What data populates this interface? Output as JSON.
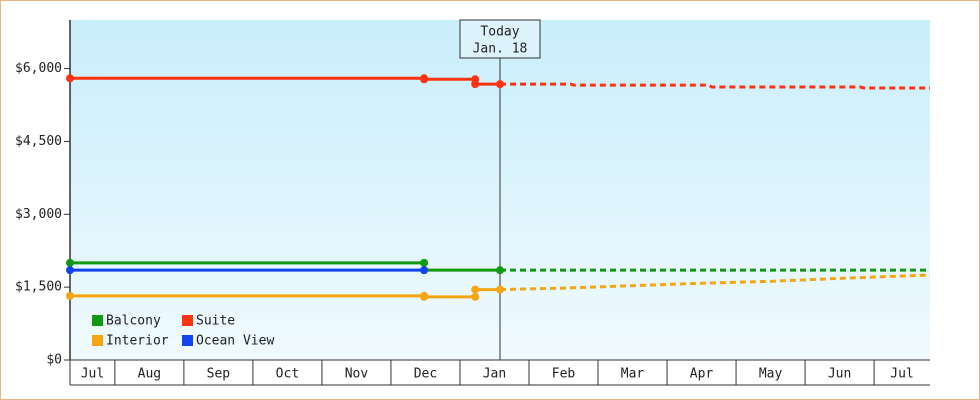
{
  "chart_data": {
    "type": "line",
    "xlim": [
      0.35,
      12.81
    ],
    "ylim": [
      0,
      7000
    ],
    "xticks": [
      {
        "value": 0,
        "label": "Jul"
      },
      {
        "value": 1,
        "label": "Aug"
      },
      {
        "value": 2,
        "label": "Sep"
      },
      {
        "value": 3,
        "label": "Oct"
      },
      {
        "value": 4,
        "label": "Nov"
      },
      {
        "value": 5,
        "label": "Dec"
      },
      {
        "value": 6,
        "label": "Jan"
      },
      {
        "value": 7,
        "label": "Feb"
      },
      {
        "value": 8,
        "label": "Mar"
      },
      {
        "value": 9,
        "label": "Apr"
      },
      {
        "value": 10,
        "label": "May"
      },
      {
        "value": 11,
        "label": "Jun"
      },
      {
        "value": 12,
        "label": "Jul"
      }
    ],
    "yticks": [
      {
        "value": 0,
        "label": "$0"
      },
      {
        "value": 1500,
        "label": "$1,500"
      },
      {
        "value": 3000,
        "label": "$3,000"
      },
      {
        "value": 4500,
        "label": "$4,500"
      },
      {
        "value": 6000,
        "label": "$6,000"
      }
    ],
    "annotation": {
      "x": 6.58,
      "lines": [
        "Today",
        "Jan. 18"
      ]
    },
    "legend": "lower left",
    "series": [
      {
        "name": "Balcony",
        "color": "#119911",
        "history": {
          "x": [
            0.35,
            5.48,
            5.48,
            6.58
          ],
          "values": [
            2000,
            2000,
            1850,
            1850
          ]
        },
        "forecast": {
          "x": [
            6.58,
            12.81
          ],
          "values": [
            1850,
            1850
          ]
        }
      },
      {
        "name": "Suite",
        "color": "#ff3311",
        "history": {
          "x": [
            0.35,
            5.48,
            5.48,
            6.22,
            6.22,
            6.58
          ],
          "values": [
            5800,
            5800,
            5780,
            5780,
            5680,
            5680
          ]
        },
        "forecast": {
          "x": [
            6.58,
            7.6,
            7.65,
            9.6,
            9.65,
            11.8,
            11.85,
            12.81
          ],
          "values": [
            5680,
            5680,
            5660,
            5660,
            5620,
            5620,
            5600,
            5600
          ]
        }
      },
      {
        "name": "Interior",
        "color": "#f5a511",
        "history": {
          "x": [
            0.35,
            5.48,
            5.48,
            6.22,
            6.22,
            6.58
          ],
          "values": [
            1320,
            1320,
            1300,
            1300,
            1450,
            1450
          ]
        },
        "forecast": {
          "x": [
            6.58,
            7.5,
            8.5,
            9.5,
            10.5,
            11.5,
            12.81
          ],
          "values": [
            1450,
            1480,
            1530,
            1580,
            1620,
            1680,
            1750
          ]
        }
      },
      {
        "name": "Ocean View",
        "color": "#1144ee",
        "history": {
          "x": [
            0.35,
            5.48
          ],
          "values": [
            1850,
            1850
          ]
        }
      }
    ]
  }
}
